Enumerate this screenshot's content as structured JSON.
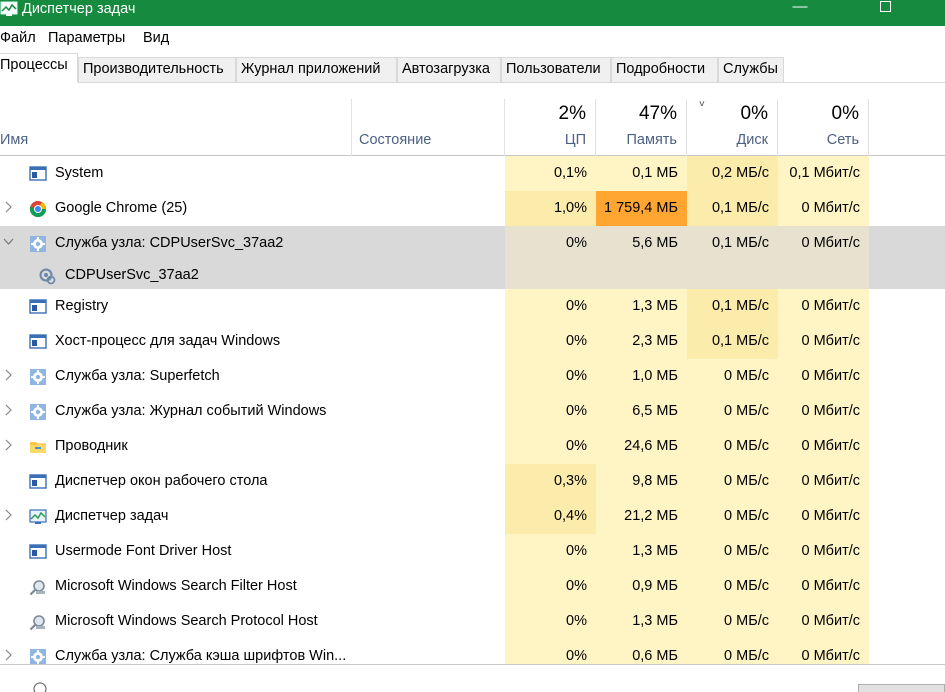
{
  "window": {
    "title": "Диспетчер задач",
    "minimize_glyph": "—",
    "accent_color": "#168a3e"
  },
  "menu": [
    "Файл",
    "Параметры",
    "Вид"
  ],
  "tabs": [
    "Процессы",
    "Производительность",
    "Журнал приложений",
    "Автозагрузка",
    "Пользователи",
    "Подробности",
    "Службы"
  ],
  "header": {
    "name": "Имя",
    "status": "Состояние",
    "cpu": {
      "percent": "2%",
      "label": "ЦП"
    },
    "memory": {
      "percent": "47%",
      "label": "Память"
    },
    "disk": {
      "percent": "0%",
      "label": "Диск",
      "sort_glyph": "˅"
    },
    "network": {
      "percent": "0%",
      "label": "Сеть"
    }
  },
  "processes": [
    {
      "name": "System",
      "icon": "window-icon",
      "expandable": false,
      "cpu": "0,1%",
      "mem": "0,1 МБ",
      "disk": "0,2 МБ/с",
      "net": "0,1 Мбит/с"
    },
    {
      "name": "Google Chrome (25)",
      "icon": "chrome-icon",
      "expandable": true,
      "cpu": "1,0%",
      "mem": "1 759,4 МБ",
      "disk": "0,1 МБ/с",
      "net": "0 Мбит/с"
    },
    {
      "name": "Служба узла: CDPUserSvc_37aa2",
      "icon": "service-gear-icon",
      "expandable": true,
      "expanded": true,
      "selected": true,
      "cpu": "0%",
      "mem": "5,6 МБ",
      "disk": "0,1 МБ/с",
      "net": "0 Мбит/с"
    },
    {
      "name": "CDPUserSvc_37aa2",
      "icon": "service-sub-icon",
      "child": true,
      "selected": true,
      "cpu": "",
      "mem": "",
      "disk": "",
      "net": ""
    },
    {
      "name": "Registry",
      "icon": "window-icon",
      "expandable": false,
      "cpu": "0%",
      "mem": "1,3 МБ",
      "disk": "0,1 МБ/с",
      "net": "0 Мбит/с"
    },
    {
      "name": "Хост-процесс для задач Windows",
      "icon": "window-icon",
      "expandable": false,
      "cpu": "0%",
      "mem": "2,3 МБ",
      "disk": "0,1 МБ/с",
      "net": "0 Мбит/с"
    },
    {
      "name": "Служба узла: Superfetch",
      "icon": "service-gear-icon",
      "expandable": true,
      "cpu": "0%",
      "mem": "1,0 МБ",
      "disk": "0 МБ/с",
      "net": "0 Мбит/с"
    },
    {
      "name": "Служба узла: Журнал событий Windows",
      "icon": "service-gear-icon",
      "expandable": true,
      "cpu": "0%",
      "mem": "6,5 МБ",
      "disk": "0 МБ/с",
      "net": "0 Мбит/с"
    },
    {
      "name": "Проводник",
      "icon": "folder-icon",
      "expandable": true,
      "cpu": "0%",
      "mem": "24,6 МБ",
      "disk": "0 МБ/с",
      "net": "0 Мбит/с"
    },
    {
      "name": "Диспетчер окон рабочего стола",
      "icon": "window-icon",
      "expandable": false,
      "cpu": "0,3%",
      "mem": "9,8 МБ",
      "disk": "0 МБ/с",
      "net": "0 Мбит/с"
    },
    {
      "name": "Диспетчер задач",
      "icon": "task-manager-icon",
      "expandable": true,
      "cpu": "0,4%",
      "mem": "21,2 МБ",
      "disk": "0 МБ/с",
      "net": "0 Мбит/с"
    },
    {
      "name": "Usermode Font Driver Host",
      "icon": "window-icon",
      "expandable": false,
      "cpu": "0%",
      "mem": "1,3 МБ",
      "disk": "0 МБ/с",
      "net": "0 Мбит/с"
    },
    {
      "name": "Microsoft Windows Search Filter Host",
      "icon": "search-host-icon",
      "expandable": false,
      "cpu": "0%",
      "mem": "0,9 МБ",
      "disk": "0 МБ/с",
      "net": "0 Мбит/с"
    },
    {
      "name": "Microsoft Windows Search Protocol Host",
      "icon": "search-host-icon",
      "expandable": false,
      "cpu": "0%",
      "mem": "1,3 МБ",
      "disk": "0 МБ/с",
      "net": "0 Мбит/с"
    },
    {
      "name": "Служба узла: Служба кэша шрифтов Win...",
      "icon": "service-gear-icon",
      "expandable": true,
      "cpu": "0%",
      "mem": "0,6 МБ",
      "disk": "0 МБ/с",
      "net": "0 Мбит/с"
    }
  ],
  "heat_colors": {
    "light": "#fff4c4",
    "medium": "#fcecab",
    "strong": "#ffd281",
    "hot": "#ffa532",
    "selected_light": "#e6e2cf"
  }
}
